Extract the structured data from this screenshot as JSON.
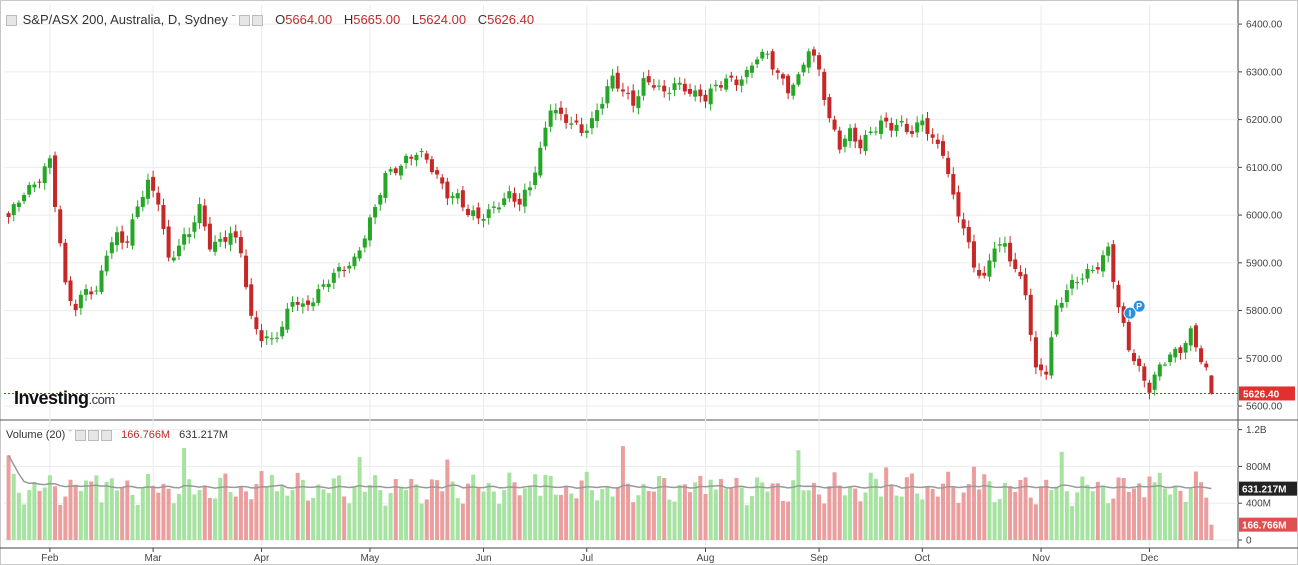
{
  "header": {
    "collapse_icon": "square-minus-icon",
    "symbol": "S&P/ASX 200, Australia, D, Sydney",
    "ohlc": {
      "o_label": "O",
      "o": "5664.00",
      "h_label": "H",
      "h": "5665.00",
      "l_label": "L",
      "l": "5624.00",
      "c_label": "C",
      "c": "5626.40"
    }
  },
  "volume_header": {
    "label": "Volume (20)",
    "vol_value": "166.766M",
    "ma_value": "631.217M"
  },
  "brand": {
    "main": "Investing",
    "suffix": ".com"
  },
  "colors": {
    "up": "#26a626",
    "down": "#c62828",
    "vol_up": "#a6e3a1",
    "vol_down": "#ea9e9e",
    "ma_line": "#999999",
    "last_line": "#cc2222"
  },
  "chart_data": {
    "type": "candlestick",
    "price_axis": {
      "ticks": [
        "6400.00",
        "6300.00",
        "6200.00",
        "6100.00",
        "6000.00",
        "5900.00",
        "5800.00",
        "5700.00",
        "5600.00"
      ],
      "ylim": [
        5575,
        6440
      ]
    },
    "last_price_label": "5626.40",
    "volume_axis": {
      "ticks": [
        "1.2B",
        "800M",
        "400M",
        "0"
      ],
      "ylim": [
        0,
        1250000000
      ]
    },
    "volume_labels": {
      "ma": "631.217M",
      "last": "166.766M"
    },
    "months": [
      {
        "label": "Feb",
        "index": 8
      },
      {
        "label": "Mar",
        "index": 28
      },
      {
        "label": "Apr",
        "index": 49
      },
      {
        "label": "May",
        "index": 70
      },
      {
        "label": "Jun",
        "index": 92
      },
      {
        "label": "Jul",
        "index": 112
      },
      {
        "label": "Aug",
        "index": 135
      },
      {
        "label": "Sep",
        "index": 157
      },
      {
        "label": "Oct",
        "index": 177
      },
      {
        "label": "Nov",
        "index": 200
      },
      {
        "label": "Dec",
        "index": 221
      }
    ],
    "markers": [
      {
        "label": "P",
        "index": 219
      },
      {
        "label": "I",
        "index": 218
      }
    ],
    "candles": []
  }
}
